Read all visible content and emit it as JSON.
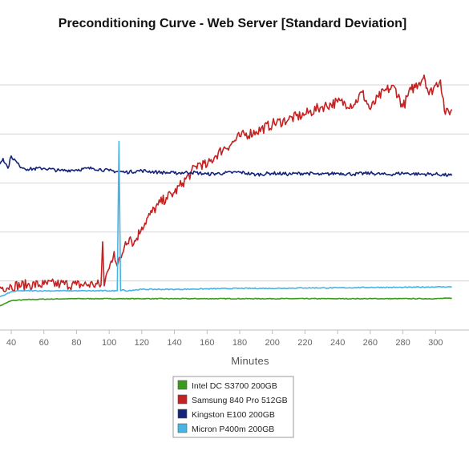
{
  "chart_data": {
    "type": "line",
    "title": "Preconditioning Curve - Web Server [Standard Deviation]",
    "xlabel": "Minutes",
    "ylabel": "",
    "xlim": [
      30,
      310
    ],
    "ylim": [
      0,
      5
    ],
    "x_ticks": [
      40,
      60,
      80,
      100,
      120,
      140,
      160,
      180,
      200,
      220,
      240,
      260,
      280,
      300
    ],
    "y_gridlines": [
      0,
      1,
      2,
      3,
      4,
      5
    ],
    "grid": true,
    "legend_position": "bottom-center",
    "series": [
      {
        "name": "Intel DC S3700 200GB",
        "color": "#3a9a1a",
        "x": [
          30,
          35,
          40,
          50,
          60,
          80,
          100,
          150,
          200,
          250,
          300,
          310
        ],
        "y": [
          0.45,
          0.52,
          0.6,
          0.62,
          0.63,
          0.64,
          0.64,
          0.64,
          0.64,
          0.64,
          0.64,
          0.65
        ]
      },
      {
        "name": "Samsung 840 Pro 512GB",
        "color": "#c42222",
        "x": [
          30,
          40,
          50,
          60,
          70,
          80,
          90,
          95,
          96,
          97,
          98,
          100,
          103,
          105,
          108,
          110,
          113,
          115,
          120,
          125,
          130,
          135,
          140,
          145,
          150,
          155,
          160,
          165,
          170,
          175,
          180,
          190,
          200,
          210,
          220,
          230,
          240,
          250,
          255,
          260,
          265,
          270,
          275,
          280,
          285,
          290,
          293,
          296,
          300,
          303,
          306,
          310
        ],
        "y": [
          0.85,
          0.9,
          0.92,
          0.93,
          0.94,
          0.92,
          0.93,
          0.92,
          1.8,
          0.9,
          1.1,
          1.25,
          1.6,
          1.3,
          1.55,
          1.8,
          1.9,
          1.75,
          2.1,
          2.35,
          2.55,
          2.7,
          2.8,
          3.0,
          3.2,
          3.4,
          3.35,
          3.55,
          3.7,
          3.8,
          3.95,
          4.05,
          4.2,
          4.3,
          4.4,
          4.55,
          4.65,
          4.6,
          4.85,
          4.5,
          4.75,
          4.9,
          4.95,
          4.55,
          4.9,
          5.05,
          5.2,
          4.8,
          5.0,
          5.1,
          4.4,
          4.5
        ]
      },
      {
        "name": "Kingston E100 200GB",
        "color": "#14247a",
        "x": [
          30,
          32,
          35,
          38,
          40,
          45,
          50,
          60,
          70,
          80,
          90,
          100,
          110,
          120,
          130,
          140,
          150,
          160,
          170,
          180,
          190,
          200,
          210,
          220,
          230,
          240,
          250,
          260,
          270,
          280,
          290,
          300,
          310
        ],
        "y": [
          3.4,
          3.35,
          3.5,
          3.3,
          3.55,
          3.35,
          3.28,
          3.3,
          3.25,
          3.27,
          3.3,
          3.25,
          3.22,
          3.25,
          3.22,
          3.2,
          3.22,
          3.18,
          3.2,
          3.22,
          3.17,
          3.2,
          3.18,
          3.2,
          3.17,
          3.2,
          3.18,
          3.2,
          3.17,
          3.2,
          3.18,
          3.18,
          3.15
        ]
      },
      {
        "name": "Micron P400m 200GB",
        "color": "#45b4e6",
        "x": [
          30,
          35,
          40,
          45,
          50,
          60,
          80,
          100,
          105,
          106,
          107,
          108,
          109,
          110,
          120,
          140,
          160,
          180,
          200,
          220,
          240,
          260,
          280,
          300,
          310
        ],
        "y": [
          0.67,
          0.7,
          0.78,
          0.8,
          0.8,
          0.8,
          0.8,
          0.8,
          0.8,
          3.85,
          0.8,
          0.82,
          0.82,
          0.8,
          0.83,
          0.83,
          0.84,
          0.85,
          0.85,
          0.86,
          0.86,
          0.87,
          0.87,
          0.88,
          0.88
        ]
      }
    ]
  }
}
